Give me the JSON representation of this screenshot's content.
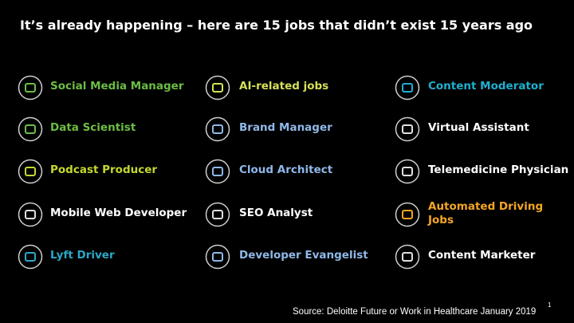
{
  "title": "It’s already happening – here are 15 jobs that didn’t exist 15 years ago",
  "columns": [
    [
      {
        "label": "Social Media Manager",
        "color": "#6cbd45"
      },
      {
        "label": "Data Scientist",
        "color": "#6cbd45"
      },
      {
        "label": "Podcast Producer",
        "color": "#c5d82e"
      },
      {
        "label": "Mobile Web Developer",
        "color": "#ffffff"
      },
      {
        "label": "Lyft Driver",
        "color": "#2aa9c9"
      }
    ],
    [
      {
        "label": "AI-related jobs",
        "color": "#d4e157"
      },
      {
        "label": "Brand Manager",
        "color": "#8fb8e8"
      },
      {
        "label": "Cloud Architect",
        "color": "#8fb8e8"
      },
      {
        "label": "SEO Analyst",
        "color": "#ffffff"
      },
      {
        "label": "Developer Evangelist",
        "color": "#8fb8e8"
      }
    ],
    [
      {
        "label": "Content Moderator",
        "color": "#1fb0d0"
      },
      {
        "label": "Virtual Assistant",
        "color": "#ffffff"
      },
      {
        "label": "Telemedicine Physician",
        "color": "#ffffff"
      },
      {
        "label": "Automated Driving Jobs",
        "color": "#f5a623"
      },
      {
        "label": "Content Marketer",
        "color": "#ffffff"
      }
    ]
  ],
  "source": "Source: Deloitte Future or Work in Healthcare January 2019",
  "slide_number": "1"
}
